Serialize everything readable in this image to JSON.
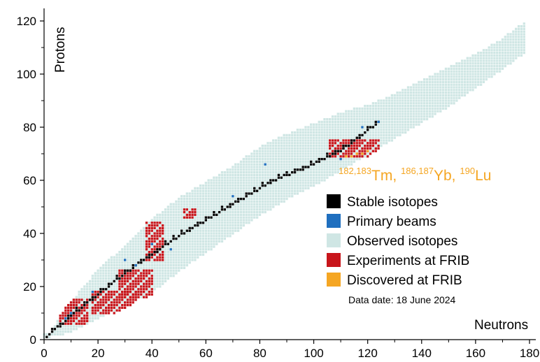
{
  "chart_data": {
    "type": "scatter",
    "xlabel": "Neutrons",
    "ylabel": "Protons",
    "xlim": [
      0,
      180
    ],
    "ylim": [
      0,
      120
    ],
    "x_ticks": [
      0,
      20,
      40,
      60,
      80,
      100,
      120,
      140,
      160,
      180
    ],
    "y_ticks": [
      0,
      20,
      40,
      60,
      80,
      100,
      120
    ],
    "grid": false,
    "legend_position": "right",
    "annotation": {
      "parts": [
        {
          "sup": "182,183",
          "text": "Tm, "
        },
        {
          "sup": "186,187",
          "text": "Yb, "
        },
        {
          "sup": "190",
          "text": "Lu"
        }
      ],
      "color": "#f5a623"
    },
    "series": [
      {
        "name": "Stable isotopes",
        "color": "#000000"
      },
      {
        "name": "Primary beams",
        "color": "#1f6fbf"
      },
      {
        "name": "Observed isotopes",
        "color": "#cfe6e4"
      },
      {
        "name": "Experiments at FRIB",
        "color": "#c8151b"
      },
      {
        "name": "Discovered at FRIB",
        "color": "#f5a623"
      }
    ],
    "data_date": "Data date: 18 June 2024",
    "observed_band": {
      "lower_edge": [
        [
          0,
          1
        ],
        [
          10,
          3
        ],
        [
          20,
          8
        ],
        [
          30,
          13
        ],
        [
          40,
          18
        ],
        [
          50,
          26
        ],
        [
          60,
          33
        ],
        [
          70,
          40
        ],
        [
          80,
          47
        ],
        [
          90,
          53
        ],
        [
          100,
          58
        ],
        [
          110,
          64
        ],
        [
          120,
          70
        ],
        [
          130,
          76
        ],
        [
          140,
          82
        ],
        [
          150,
          88
        ],
        [
          160,
          95
        ],
        [
          170,
          102
        ],
        [
          178,
          108
        ]
      ],
      "upper_edge": [
        [
          2,
          2
        ],
        [
          10,
          14
        ],
        [
          20,
          26
        ],
        [
          30,
          35
        ],
        [
          40,
          45
        ],
        [
          50,
          53
        ],
        [
          60,
          59
        ],
        [
          70,
          65
        ],
        [
          80,
          72
        ],
        [
          90,
          77
        ],
        [
          100,
          81
        ],
        [
          110,
          85
        ],
        [
          120,
          88
        ],
        [
          130,
          92
        ],
        [
          140,
          97
        ],
        [
          150,
          102
        ],
        [
          160,
          107
        ],
        [
          170,
          113
        ],
        [
          178,
          119
        ]
      ]
    },
    "stable_valley": [
      [
        1,
        1
      ],
      [
        10,
        9
      ],
      [
        20,
        17
      ],
      [
        30,
        25
      ],
      [
        40,
        32
      ],
      [
        50,
        39
      ],
      [
        60,
        45
      ],
      [
        70,
        51
      ],
      [
        80,
        57
      ],
      [
        90,
        62
      ],
      [
        100,
        66
      ],
      [
        110,
        71
      ],
      [
        118,
        77
      ],
      [
        124,
        82
      ]
    ],
    "primary_beams": [
      [
        8,
        8
      ],
      [
        10,
        10
      ],
      [
        18,
        18
      ],
      [
        30,
        30
      ],
      [
        34,
        28
      ],
      [
        40,
        36
      ],
      [
        47,
        34
      ],
      [
        70,
        54
      ],
      [
        82,
        66
      ],
      [
        110,
        68
      ],
      [
        118,
        80
      ],
      [
        124,
        82
      ]
    ],
    "frib_experiments": [
      {
        "x": [
          6,
          16
        ],
        "y": [
          6,
          15
        ]
      },
      {
        "x": [
          18,
          34
        ],
        "y": [
          10,
          18
        ]
      },
      {
        "x": [
          28,
          40
        ],
        "y": [
          16,
          26
        ]
      },
      {
        "x": [
          38,
          44
        ],
        "y": [
          30,
          44
        ]
      },
      {
        "x": [
          52,
          56
        ],
        "y": [
          46,
          49
        ]
      },
      {
        "x": [
          106,
          124
        ],
        "y": [
          69,
          75
        ]
      }
    ],
    "frib_discovered": [
      [
        112,
        69
      ],
      [
        114,
        69
      ],
      [
        116,
        70
      ],
      [
        118,
        70
      ],
      [
        120,
        71
      ]
    ]
  }
}
